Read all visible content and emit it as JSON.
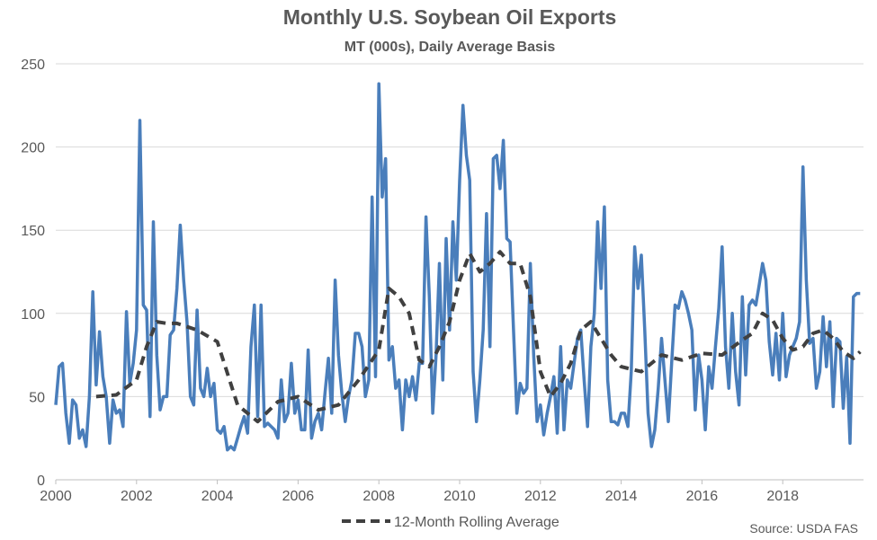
{
  "chart_data": {
    "type": "line",
    "title": "Monthly U.S. Soybean Oil Exports",
    "subtitle": "MT (000s), Daily Average Basis",
    "source": "Source: USDA FAS",
    "xlim": [
      2000,
      2020
    ],
    "ylim": [
      0,
      250
    ],
    "yticks": [
      0,
      50,
      100,
      150,
      200,
      250
    ],
    "xticks": [
      2000,
      2002,
      2004,
      2006,
      2008,
      2010,
      2012,
      2014,
      2016,
      2018
    ],
    "grid": "horizontal",
    "legend_position": "bottom",
    "series": [
      {
        "name": "",
        "style": "solid",
        "color": "#4a7ebb",
        "x": [
          2000.0,
          2000.083,
          2000.167,
          2000.25,
          2000.333,
          2000.417,
          2000.5,
          2000.583,
          2000.667,
          2000.75,
          2000.833,
          2000.917,
          2001.0,
          2001.083,
          2001.167,
          2001.25,
          2001.333,
          2001.417,
          2001.5,
          2001.583,
          2001.667,
          2001.75,
          2001.833,
          2001.917,
          2002.0,
          2002.083,
          2002.167,
          2002.25,
          2002.333,
          2002.417,
          2002.5,
          2002.583,
          2002.667,
          2002.75,
          2002.833,
          2002.917,
          2003.0,
          2003.083,
          2003.167,
          2003.25,
          2003.333,
          2003.417,
          2003.5,
          2003.583,
          2003.667,
          2003.75,
          2003.833,
          2003.917,
          2004.0,
          2004.083,
          2004.167,
          2004.25,
          2004.333,
          2004.417,
          2004.5,
          2004.583,
          2004.667,
          2004.75,
          2004.833,
          2004.917,
          2005.0,
          2005.083,
          2005.167,
          2005.25,
          2005.333,
          2005.417,
          2005.5,
          2005.583,
          2005.667,
          2005.75,
          2005.833,
          2005.917,
          2006.0,
          2006.083,
          2006.167,
          2006.25,
          2006.333,
          2006.417,
          2006.5,
          2006.583,
          2006.667,
          2006.75,
          2006.833,
          2006.917,
          2007.0,
          2007.083,
          2007.167,
          2007.25,
          2007.333,
          2007.417,
          2007.5,
          2007.583,
          2007.667,
          2007.75,
          2007.833,
          2007.917,
          2008.0,
          2008.083,
          2008.167,
          2008.25,
          2008.333,
          2008.417,
          2008.5,
          2008.583,
          2008.667,
          2008.75,
          2008.833,
          2008.917,
          2009.0,
          2009.083,
          2009.167,
          2009.25,
          2009.333,
          2009.417,
          2009.5,
          2009.583,
          2009.667,
          2009.75,
          2009.833,
          2009.917,
          2010.0,
          2010.083,
          2010.167,
          2010.25,
          2010.333,
          2010.417,
          2010.5,
          2010.583,
          2010.667,
          2010.75,
          2010.833,
          2010.917,
          2011.0,
          2011.083,
          2011.167,
          2011.25,
          2011.333,
          2011.417,
          2011.5,
          2011.583,
          2011.667,
          2011.75,
          2011.833,
          2011.917,
          2012.0,
          2012.083,
          2012.167,
          2012.25,
          2012.333,
          2012.417,
          2012.5,
          2012.583,
          2012.667,
          2012.75,
          2012.833,
          2012.917,
          2013.0,
          2013.083,
          2013.167,
          2013.25,
          2013.333,
          2013.417,
          2013.5,
          2013.583,
          2013.667,
          2013.75,
          2013.833,
          2013.917,
          2014.0,
          2014.083,
          2014.167,
          2014.25,
          2014.333,
          2014.417,
          2014.5,
          2014.583,
          2014.667,
          2014.75,
          2014.833,
          2014.917,
          2015.0,
          2015.083,
          2015.167,
          2015.25,
          2015.333,
          2015.417,
          2015.5,
          2015.583,
          2015.667,
          2015.75,
          2015.833,
          2015.917,
          2016.0,
          2016.083,
          2016.167,
          2016.25,
          2016.333,
          2016.417,
          2016.5,
          2016.583,
          2016.667,
          2016.75,
          2016.833,
          2016.917,
          2017.0,
          2017.083,
          2017.167,
          2017.25,
          2017.333,
          2017.417,
          2017.5,
          2017.583,
          2017.667,
          2017.75,
          2017.833,
          2017.917,
          2018.0,
          2018.083,
          2018.167,
          2018.25,
          2018.333,
          2018.417,
          2018.5,
          2018.583,
          2018.667,
          2018.75,
          2018.833,
          2018.917,
          2019.0,
          2019.083,
          2019.167,
          2019.25,
          2019.333,
          2019.417,
          2019.5,
          2019.583,
          2019.667,
          2019.75,
          2019.833,
          2019.917
        ],
        "values": [
          45,
          68,
          70,
          40,
          22,
          48,
          45,
          25,
          30,
          20,
          50,
          113,
          57,
          89,
          62,
          50,
          22,
          48,
          40,
          42,
          32,
          101,
          58,
          70,
          90,
          216,
          105,
          102,
          38,
          155,
          75,
          42,
          50,
          50,
          87,
          90,
          115,
          153,
          120,
          95,
          50,
          45,
          102,
          55,
          50,
          67,
          50,
          58,
          30,
          28,
          32,
          18,
          20,
          18,
          25,
          32,
          38,
          28,
          80,
          105,
          38,
          105,
          32,
          34,
          32,
          30,
          25,
          60,
          35,
          40,
          70,
          40,
          48,
          30,
          30,
          78,
          25,
          35,
          40,
          30,
          52,
          73,
          40,
          120,
          75,
          52,
          35,
          50,
          60,
          88,
          88,
          80,
          50,
          60,
          170,
          62,
          238,
          170,
          193,
          72,
          80,
          55,
          60,
          30,
          60,
          50,
          62,
          48,
          70,
          70,
          158,
          110,
          40,
          75,
          130,
          60,
          145,
          90,
          155,
          120,
          180,
          225,
          195,
          180,
          65,
          35,
          60,
          90,
          160,
          80,
          193,
          195,
          175,
          204,
          145,
          143,
          90,
          40,
          58,
          52,
          55,
          130,
          75,
          35,
          45,
          27,
          40,
          50,
          62,
          28,
          80,
          30,
          60,
          55,
          70,
          85,
          90,
          60,
          32,
          80,
          100,
          155,
          115,
          164,
          60,
          35,
          35,
          33,
          40,
          40,
          32,
          65,
          140,
          115,
          135,
          90,
          40,
          20,
          30,
          55,
          85,
          60,
          35,
          70,
          105,
          103,
          113,
          108,
          100,
          90,
          42,
          75,
          60,
          30,
          68,
          55,
          80,
          103,
          140,
          80,
          55,
          100,
          65,
          45,
          110,
          63,
          105,
          108,
          105,
          117,
          130,
          120,
          83,
          63,
          88,
          60,
          100,
          62,
          75,
          80,
          85,
          95,
          188,
          120,
          82,
          85,
          55,
          65,
          98,
          68,
          95,
          44,
          85,
          83,
          43,
          74,
          22,
          110,
          112,
          112
        ]
      },
      {
        "name": "12-Month Rolling Average",
        "style": "dashed",
        "color": "#404040",
        "x": [
          2001.0,
          2001.5,
          2002.0,
          2002.25,
          2002.5,
          2002.75,
          2003.0,
          2003.5,
          2004.0,
          2004.5,
          2005.0,
          2005.5,
          2006.0,
          2006.5,
          2007.0,
          2007.5,
          2008.0,
          2008.25,
          2008.5,
          2008.75,
          2009.0,
          2009.25,
          2009.5,
          2009.75,
          2010.0,
          2010.25,
          2010.5,
          2010.75,
          2011.0,
          2011.25,
          2011.5,
          2011.75,
          2012.0,
          2012.25,
          2012.5,
          2012.75,
          2013.0,
          2013.25,
          2013.5,
          2013.75,
          2014.0,
          2014.5,
          2015.0,
          2015.5,
          2016.0,
          2016.5,
          2017.0,
          2017.25,
          2017.5,
          2017.75,
          2018.0,
          2018.25,
          2018.5,
          2018.75,
          2019.0,
          2019.25,
          2019.5,
          2019.75,
          2019.917
        ],
        "values": [
          50,
          51,
          60,
          80,
          95,
          94,
          94,
          90,
          83,
          45,
          35,
          47,
          50,
          42,
          45,
          60,
          78,
          115,
          110,
          100,
          72,
          68,
          80,
          95,
          120,
          136,
          125,
          130,
          137,
          130,
          130,
          110,
          65,
          50,
          58,
          70,
          90,
          95,
          85,
          75,
          68,
          65,
          75,
          72,
          76,
          75,
          84,
          88,
          100,
          96,
          85,
          78,
          80,
          88,
          90,
          85,
          77,
          73,
          77
        ]
      }
    ]
  }
}
